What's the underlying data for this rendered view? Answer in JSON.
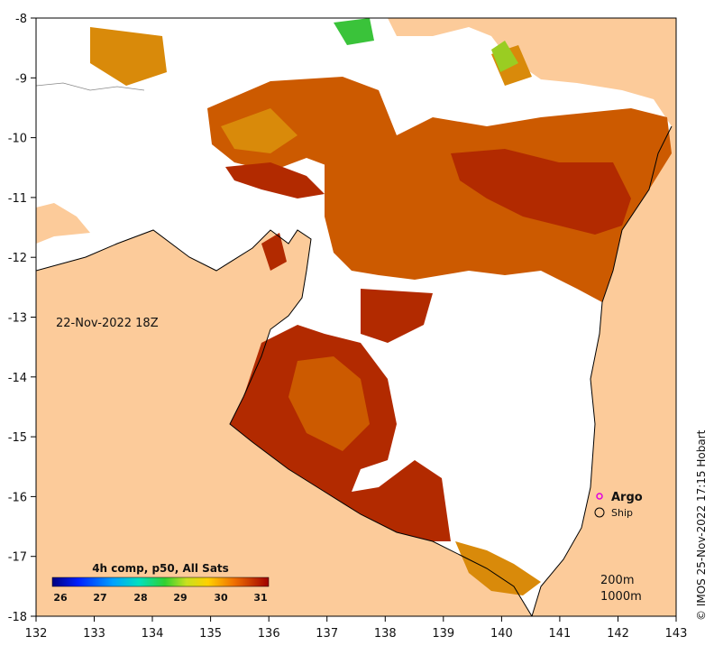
{
  "map": {
    "date_label": "22-Nov-2022 18Z",
    "credit": "© IMOS 25-Nov-2022 17:15 Hobart",
    "x_ticks": [
      "132",
      "133",
      "134",
      "135",
      "136",
      "137",
      "138",
      "139",
      "140",
      "141",
      "142",
      "143"
    ],
    "y_ticks": [
      "-8",
      "-9",
      "-10",
      "-11",
      "-12",
      "-13",
      "-14",
      "-15",
      "-16",
      "-17",
      "-18"
    ],
    "colors": {
      "land": "#fccb9a",
      "nodata": "#ffffff",
      "sst_hot": "#b22a00",
      "sst_warm": "#cc5a00",
      "sst_mid": "#d98a0a",
      "sst_cool": "#9acd22",
      "sst_green": "#3ac33a"
    }
  },
  "legend": {
    "title": "4h comp, p50, All Sats",
    "ticks": [
      "26",
      "27",
      "28",
      "29",
      "30",
      "31"
    ]
  },
  "markers": {
    "argo_label": "Argo",
    "ship_label": "Ship"
  },
  "contours": {
    "label_200": "200m",
    "label_1000": "1000m"
  }
}
